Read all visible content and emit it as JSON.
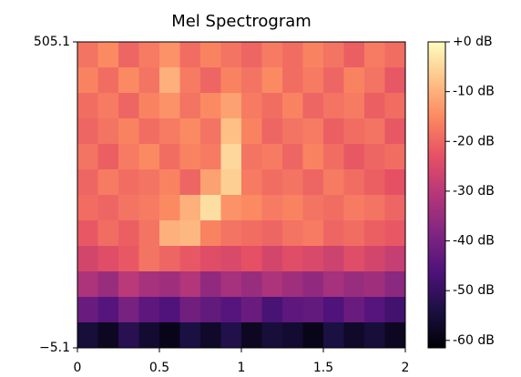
{
  "chart_data": {
    "type": "heatmap",
    "title": "Mel Spectrogram",
    "xlim": [
      0,
      2
    ],
    "xticks": [
      0,
      0.5,
      1,
      1.5,
      2
    ],
    "ylim": [
      -5.1,
      505.1
    ],
    "yticks": [
      {
        "value": -5.1,
        "label": "−5.1"
      },
      505.1
    ],
    "zlim": [
      -61.5,
      0
    ],
    "zticks": [
      {
        "value": 0,
        "label": "+0 dB"
      },
      {
        "value": -10,
        "label": "-10 dB"
      },
      {
        "value": -20,
        "label": "-20 dB"
      },
      {
        "value": -30,
        "label": "-30 dB"
      },
      {
        "value": -40,
        "label": "-40 dB"
      },
      {
        "value": -50,
        "label": "-50 dB"
      },
      {
        "value": -60,
        "label": "-60 dB"
      }
    ],
    "colormap": [
      "#000004",
      "#1c1044",
      "#4f127b",
      "#812581",
      "#b5367a",
      "#e55064",
      "#fb8761",
      "#fec287",
      "#fcfdbf"
    ],
    "z": [
      [
        -18,
        -15,
        -20,
        -17,
        -14,
        -19,
        -16,
        -18,
        -20,
        -17,
        -19,
        -16,
        -18,
        -21,
        -17,
        -19
      ],
      [
        -16,
        -19,
        -15,
        -18,
        -10,
        -17,
        -20,
        -16,
        -18,
        -15,
        -19,
        -17,
        -20,
        -16,
        -18,
        -22
      ],
      [
        -19,
        -17,
        -20,
        -16,
        -14,
        -18,
        -15,
        -12,
        -17,
        -19,
        -16,
        -20,
        -18,
        -17,
        -21,
        -19
      ],
      [
        -20,
        -18,
        -16,
        -19,
        -17,
        -15,
        -18,
        -8,
        -16,
        -20,
        -18,
        -17,
        -21,
        -19,
        -18,
        -22
      ],
      [
        -18,
        -21,
        -17,
        -15,
        -19,
        -16,
        -17,
        -5,
        -18,
        -17,
        -20,
        -16,
        -19,
        -22,
        -20,
        -19
      ],
      [
        -20,
        -17,
        -19,
        -18,
        -16,
        -20,
        -12,
        -6,
        -17,
        -19,
        -18,
        -20,
        -17,
        -19,
        -21,
        -23
      ],
      [
        -19,
        -20,
        -18,
        -17,
        -15,
        -10,
        -4,
        -14,
        -15,
        -17,
        -16,
        -18,
        -19,
        -17,
        -18,
        -20
      ],
      [
        -22,
        -19,
        -21,
        -18,
        -10,
        -9,
        -16,
        -18,
        -19,
        -20,
        -18,
        -17,
        -20,
        -19,
        -21,
        -22
      ],
      [
        -26,
        -24,
        -22,
        -18,
        -20,
        -22,
        -24,
        -25,
        -23,
        -26,
        -24,
        -25,
        -27,
        -24,
        -26,
        -28
      ],
      [
        -32,
        -35,
        -30,
        -33,
        -34,
        -31,
        -36,
        -33,
        -35,
        -32,
        -34,
        -36,
        -33,
        -35,
        -34,
        -37
      ],
      [
        -42,
        -45,
        -40,
        -44,
        -46,
        -41,
        -43,
        -45,
        -42,
        -47,
        -44,
        -43,
        -46,
        -42,
        -45,
        -48
      ],
      [
        -55,
        -58,
        -52,
        -56,
        -59,
        -54,
        -57,
        -53,
        -58,
        -55,
        -56,
        -59,
        -54,
        -57,
        -55,
        -58
      ]
    ]
  }
}
